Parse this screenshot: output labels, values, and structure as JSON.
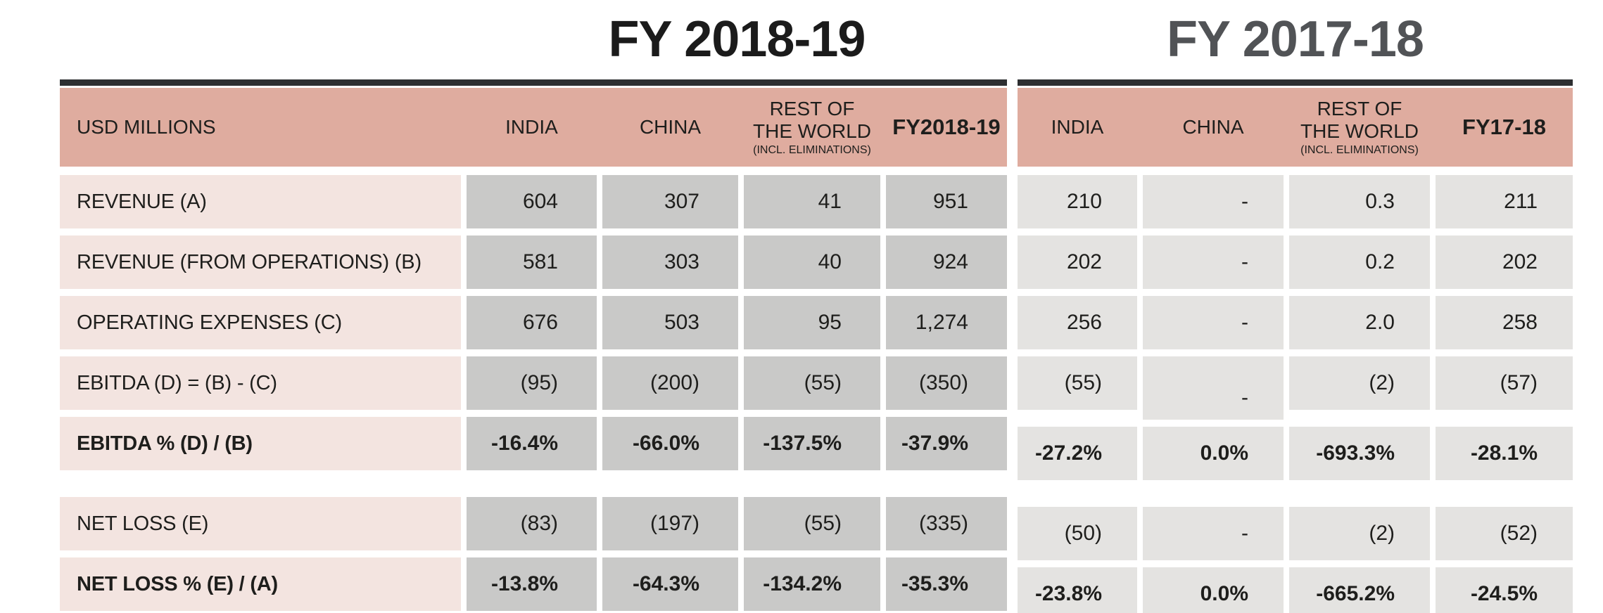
{
  "tables": {
    "fy1819": {
      "title": "FY 2018-19",
      "header": {
        "usd_millions": "USD MILLIONS",
        "india": "INDIA",
        "china": "CHINA",
        "row_line1": "REST OF",
        "row_line2": "THE WORLD",
        "row_note": "(INCL. ELIMINATIONS)",
        "total": "FY2018-19"
      }
    },
    "fy1718": {
      "title": "FY 2017-18",
      "header": {
        "india": "INDIA",
        "china": "CHINA",
        "row_line1": "REST OF",
        "row_line2": "THE WORLD",
        "row_note": "(INCL. ELIMINATIONS)",
        "total": "FY17-18"
      }
    }
  },
  "rows": [
    {
      "label": "REVENUE (A)",
      "fy1819": {
        "india": "604",
        "china": "307",
        "row": "41",
        "total": "951"
      },
      "fy1718": {
        "india": "210",
        "china": "-",
        "row": "0.3",
        "total": "211"
      }
    },
    {
      "label": "REVENUE (FROM OPERATIONS) (B)",
      "fy1819": {
        "india": "581",
        "china": "303",
        "row": "40",
        "total": "924"
      },
      "fy1718": {
        "india": "202",
        "china": "-",
        "row": "0.2",
        "total": "202"
      }
    },
    {
      "label": "OPERATING EXPENSES (C)",
      "fy1819": {
        "india": "676",
        "china": "503",
        "row": "95",
        "total": "1,274"
      },
      "fy1718": {
        "india": "256",
        "china": "-",
        "row": "2.0",
        "total": "258"
      }
    },
    {
      "label": "EBITDA (D) = (B) - (C)",
      "fy1819": {
        "india": "(95)",
        "china": "(200)",
        "row": "(55)",
        "total": "(350)"
      },
      "fy1718": {
        "india": "(55)",
        "china": "-",
        "row": "(2)",
        "total": "(57)"
      }
    },
    {
      "label": "EBITDA %  (D) / (B)",
      "fy1819": {
        "india": "-16.4%",
        "china": "-66.0%",
        "row": "-137.5%",
        "total": "-37.9%"
      },
      "fy1718": {
        "india": "-27.2%",
        "china": "0.0%",
        "row": "-693.3%",
        "total": "-28.1%"
      }
    },
    {
      "label": "NET LOSS (E)",
      "fy1819": {
        "india": "(83)",
        "china": "(197)",
        "row": "(55)",
        "total": "(335)"
      },
      "fy1718": {
        "india": "(50)",
        "china": "-",
        "row": "(2)",
        "total": "(52)"
      }
    },
    {
      "label": "NET LOSS % (E) / (A)",
      "fy1819": {
        "india": "-13.8%",
        "china": "-64.3%",
        "row": "-134.2%",
        "total": "-35.3%"
      },
      "fy1718": {
        "india": "-23.8%",
        "china": "0.0%",
        "row": "-665.2%",
        "total": "-24.5%"
      }
    }
  ],
  "colors": {
    "header_band": "#dfac9f",
    "label_cell": "#f3e4e0",
    "data_cell_fy1819": "#c9c9c8",
    "data_cell_fy1718": "#e4e3e1",
    "rule": "#2d2f31",
    "title_fy1819": "#1b1b1b",
    "title_fy1718": "#515356"
  }
}
